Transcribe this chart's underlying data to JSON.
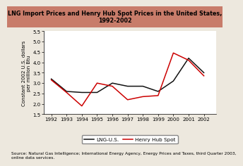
{
  "title": "LNG Import Prices and Henry Hub Spot Prices in the United States, 1992-2002",
  "title_bg_color": "#c87c6a",
  "title_fontsize": 5.8,
  "ylabel": "Constant 2002 U.S. dollars\nper million Btu",
  "ylabel_fontsize": 5.0,
  "years": [
    1992,
    1993,
    1994,
    1995,
    1996,
    1997,
    1998,
    1999,
    2000,
    2001,
    2002
  ],
  "lng_us": [
    3.2,
    2.6,
    2.55,
    2.55,
    3.0,
    2.85,
    2.85,
    2.6,
    3.1,
    4.2,
    3.5
  ],
  "henry_hub_years": [
    1992,
    1993,
    1994,
    1995,
    1996,
    1997,
    1998,
    1999,
    2000,
    2001,
    2002
  ],
  "henry_hub": [
    3.15,
    2.55,
    1.9,
    3.0,
    2.85,
    2.2,
    2.35,
    2.4,
    4.45,
    4.1,
    3.35
  ],
  "lng_color": "#111111",
  "henry_color": "#cc0000",
  "ylim": [
    1.5,
    5.5
  ],
  "yticks": [
    1.5,
    2.0,
    2.5,
    3.0,
    3.5,
    4.0,
    4.5,
    5.0,
    5.5
  ],
  "source_text": "Source: Natural Gas Intelligence; International Energy Agency, Energy Prices and Taxes, third Quarter 2003,\nonline data services.",
  "source_fontsize": 4.2,
  "bg_color": "#ede8de",
  "plot_bg_color": "#ffffff",
  "legend_labels": [
    "LNG-U.S.",
    "Henry Hub Spot"
  ],
  "linewidth": 1.1
}
